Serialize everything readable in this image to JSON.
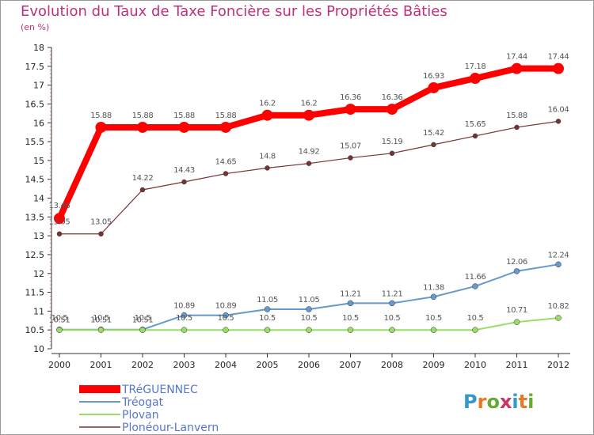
{
  "chart_data": {
    "type": "line",
    "title": "Evolution du Taux de Taxe Foncière sur les Propriétés Bâties",
    "ylabel": "(en %)",
    "ylim": [
      10,
      18
    ],
    "yticks": [
      "10",
      "10.5",
      "11",
      "11.5",
      "12",
      "12.5",
      "13",
      "13.5",
      "14",
      "14.5",
      "15",
      "15.5",
      "16",
      "16.5",
      "17",
      "17.5",
      "18"
    ],
    "categories": [
      "2000",
      "2001",
      "2002",
      "2003",
      "2004",
      "2005",
      "2006",
      "2007",
      "2008",
      "2009",
      "2010",
      "2011",
      "2012"
    ],
    "series": [
      {
        "name": "TRéGUENNEC",
        "color": "#ff0000",
        "values": [
          13.46,
          15.88,
          15.88,
          15.88,
          15.88,
          16.2,
          16.2,
          16.36,
          16.36,
          16.93,
          17.18,
          17.44,
          17.44
        ],
        "labels": [
          "13.46",
          "15.88",
          "15.88",
          "15.88",
          "15.88",
          "16.2",
          "16.2",
          "16.36",
          "16.36",
          "16.93",
          "17.18",
          "17.44",
          "17.44"
        ]
      },
      {
        "name": "Tréogat",
        "color": "#6699cc",
        "values": [
          10.51,
          10.51,
          10.51,
          10.89,
          10.89,
          11.05,
          11.05,
          11.21,
          11.21,
          11.38,
          11.66,
          12.06,
          12.24
        ],
        "labels": [
          "10.51",
          "10.51",
          "10.51",
          "10.89",
          "10.89",
          "11.05",
          "11.05",
          "11.21",
          "11.21",
          "11.38",
          "11.66",
          "12.06",
          "12.24"
        ]
      },
      {
        "name": "Plovan",
        "color": "#99dd66",
        "values": [
          10.5,
          10.5,
          10.5,
          10.5,
          10.5,
          10.5,
          10.5,
          10.5,
          10.5,
          10.5,
          10.5,
          10.71,
          10.82
        ],
        "labels": [
          "10.5",
          "10.5",
          "10.5",
          "10.5",
          "10.5",
          "10.5",
          "10.5",
          "10.5",
          "10.5",
          "10.5",
          "10.5",
          "10.71",
          "10.82"
        ]
      },
      {
        "name": "Plonéour-Lanvern",
        "color": "#773333",
        "values": [
          13.05,
          13.05,
          14.22,
          14.43,
          14.65,
          14.8,
          14.92,
          15.07,
          15.19,
          15.42,
          15.65,
          15.88,
          16.04
        ],
        "labels": [
          "13.05",
          "13.05",
          "14.22",
          "14.43",
          "14.65",
          "14.8",
          "14.92",
          "15.07",
          "15.19",
          "15.42",
          "15.65",
          "15.88",
          "16.04"
        ]
      }
    ],
    "legend_position": "bottom-left"
  },
  "logo": {
    "letters": [
      "P",
      "r",
      "o",
      "x",
      "i",
      "t",
      "i"
    ],
    "colors": [
      "#3399cc",
      "#ee7722",
      "#66aa33",
      "#cc3366",
      "#3399cc",
      "#ee7722",
      "#66aa33"
    ]
  }
}
